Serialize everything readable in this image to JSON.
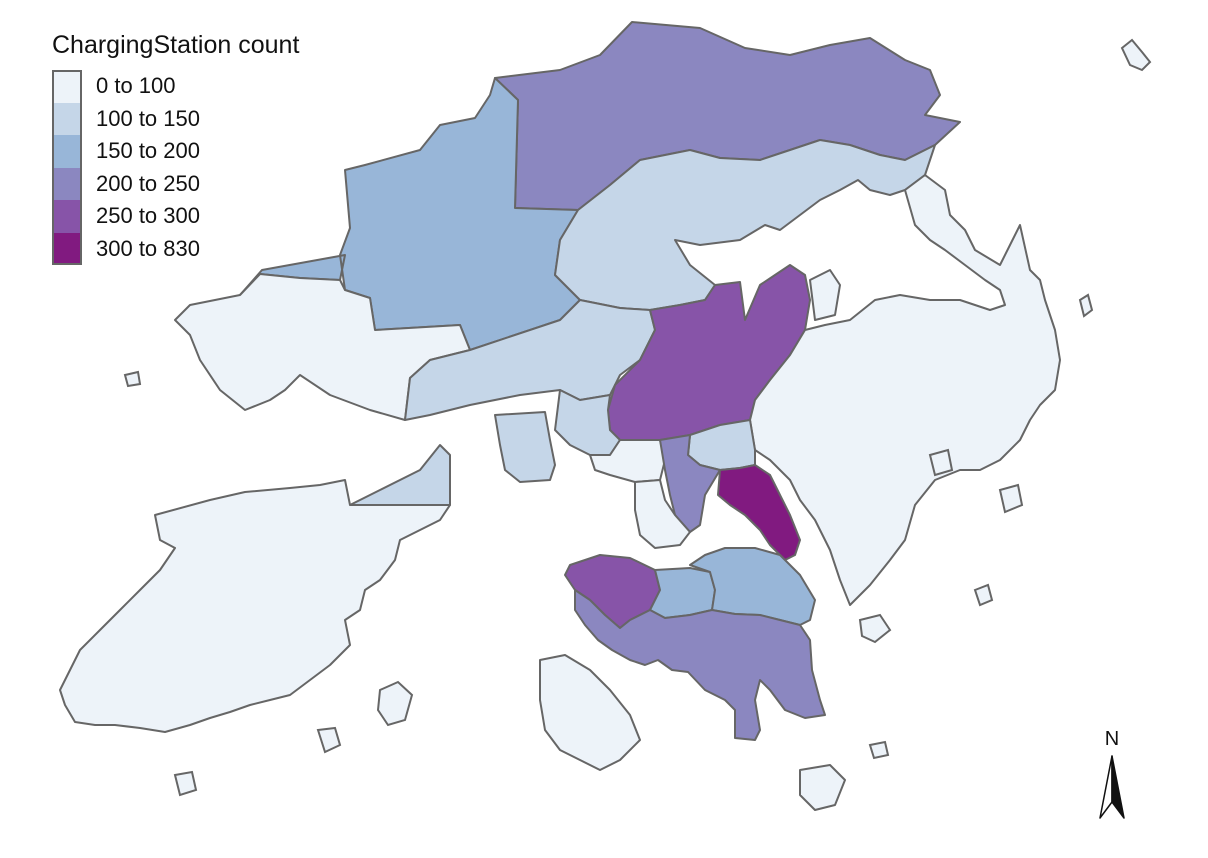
{
  "legend": {
    "title": "ChargingStation count",
    "items": [
      {
        "label": "0 to 100",
        "color": "#edf3f9"
      },
      {
        "label": "100 to 150",
        "color": "#c5d6e8"
      },
      {
        "label": "150 to 200",
        "color": "#98b6d8"
      },
      {
        "label": "200 to 250",
        "color": "#8b87c0"
      },
      {
        "label": "250 to 300",
        "color": "#8754a8"
      },
      {
        "label": "300 to 830",
        "color": "#811a80"
      }
    ]
  },
  "north_arrow": {
    "label": "N"
  },
  "colors": {
    "border": "#666666",
    "background": "#ffffff"
  },
  "districts": [
    {
      "id": "north",
      "class_index": 3
    },
    {
      "id": "yuen-long",
      "class_index": 2
    },
    {
      "id": "tuen-mun",
      "class_index": 0
    },
    {
      "id": "tai-po",
      "class_index": 1
    },
    {
      "id": "tsuen-wan",
      "class_index": 1
    },
    {
      "id": "sha-tin",
      "class_index": 4
    },
    {
      "id": "sai-kung",
      "class_index": 0
    },
    {
      "id": "islands",
      "class_index": 0
    },
    {
      "id": "kwai-tsing",
      "class_index": 1
    },
    {
      "id": "sham-shui-po",
      "class_index": 0
    },
    {
      "id": "wong-tai-sin",
      "class_index": 1
    },
    {
      "id": "kowloon-city",
      "class_index": 3
    },
    {
      "id": "kwun-tong",
      "class_index": 5
    },
    {
      "id": "yau-tsim-mong",
      "class_index": 0
    },
    {
      "id": "central-western",
      "class_index": 4
    },
    {
      "id": "wan-chai",
      "class_index": 2
    },
    {
      "id": "eastern",
      "class_index": 2
    },
    {
      "id": "southern",
      "class_index": 3
    }
  ]
}
